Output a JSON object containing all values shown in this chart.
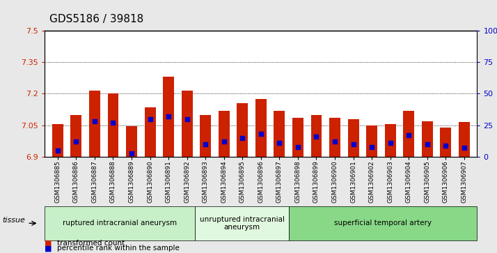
{
  "title": "GDS5186 / 39818",
  "samples": [
    "GSM1306885",
    "GSM1306886",
    "GSM1306887",
    "GSM1306888",
    "GSM1306889",
    "GSM1306890",
    "GSM1306891",
    "GSM1306892",
    "GSM1306893",
    "GSM1306894",
    "GSM1306895",
    "GSM1306896",
    "GSM1306897",
    "GSM1306898",
    "GSM1306899",
    "GSM1306900",
    "GSM1306901",
    "GSM1306902",
    "GSM1306903",
    "GSM1306904",
    "GSM1306905",
    "GSM1306906",
    "GSM1306907"
  ],
  "transformed_count": [
    7.055,
    7.1,
    7.215,
    7.2,
    7.045,
    7.135,
    7.28,
    7.215,
    7.1,
    7.12,
    7.155,
    7.175,
    7.12,
    7.085,
    7.1,
    7.085,
    7.08,
    7.05,
    7.055,
    7.12,
    7.07,
    7.04,
    7.065
  ],
  "percentile_rank": [
    5,
    12,
    28,
    27,
    3,
    30,
    32,
    30,
    10,
    12,
    15,
    18,
    11,
    8,
    16,
    12,
    10,
    8,
    11,
    17,
    10,
    9,
    7
  ],
  "groups": [
    {
      "label": "ruptured intracranial aneurysm",
      "start": 0,
      "end": 8,
      "color": "#c8f0c8"
    },
    {
      "label": "unruptured intracranial\naneurysm",
      "start": 8,
      "end": 13,
      "color": "#e0f8e0"
    },
    {
      "label": "superficial temporal artery",
      "start": 13,
      "end": 23,
      "color": "#88d888"
    }
  ],
  "ymin": 6.9,
  "ymax": 7.5,
  "yticks": [
    6.9,
    7.05,
    7.2,
    7.35,
    7.5
  ],
  "ytick_labels": [
    "6.9",
    "7.05",
    "7.2",
    "7.35",
    "7.5"
  ],
  "bar_color": "#cc2200",
  "dot_color": "#0000cc",
  "background_color": "#e8e8e8",
  "plot_bg_color": "#ffffff",
  "grid_color": "#000000",
  "title_fontsize": 11,
  "axis_label_color_left": "#cc2200",
  "axis_label_color_right": "#0000cc",
  "tissue_label": "tissue",
  "legend_items": [
    "transformed count",
    "percentile rank within the sample"
  ]
}
